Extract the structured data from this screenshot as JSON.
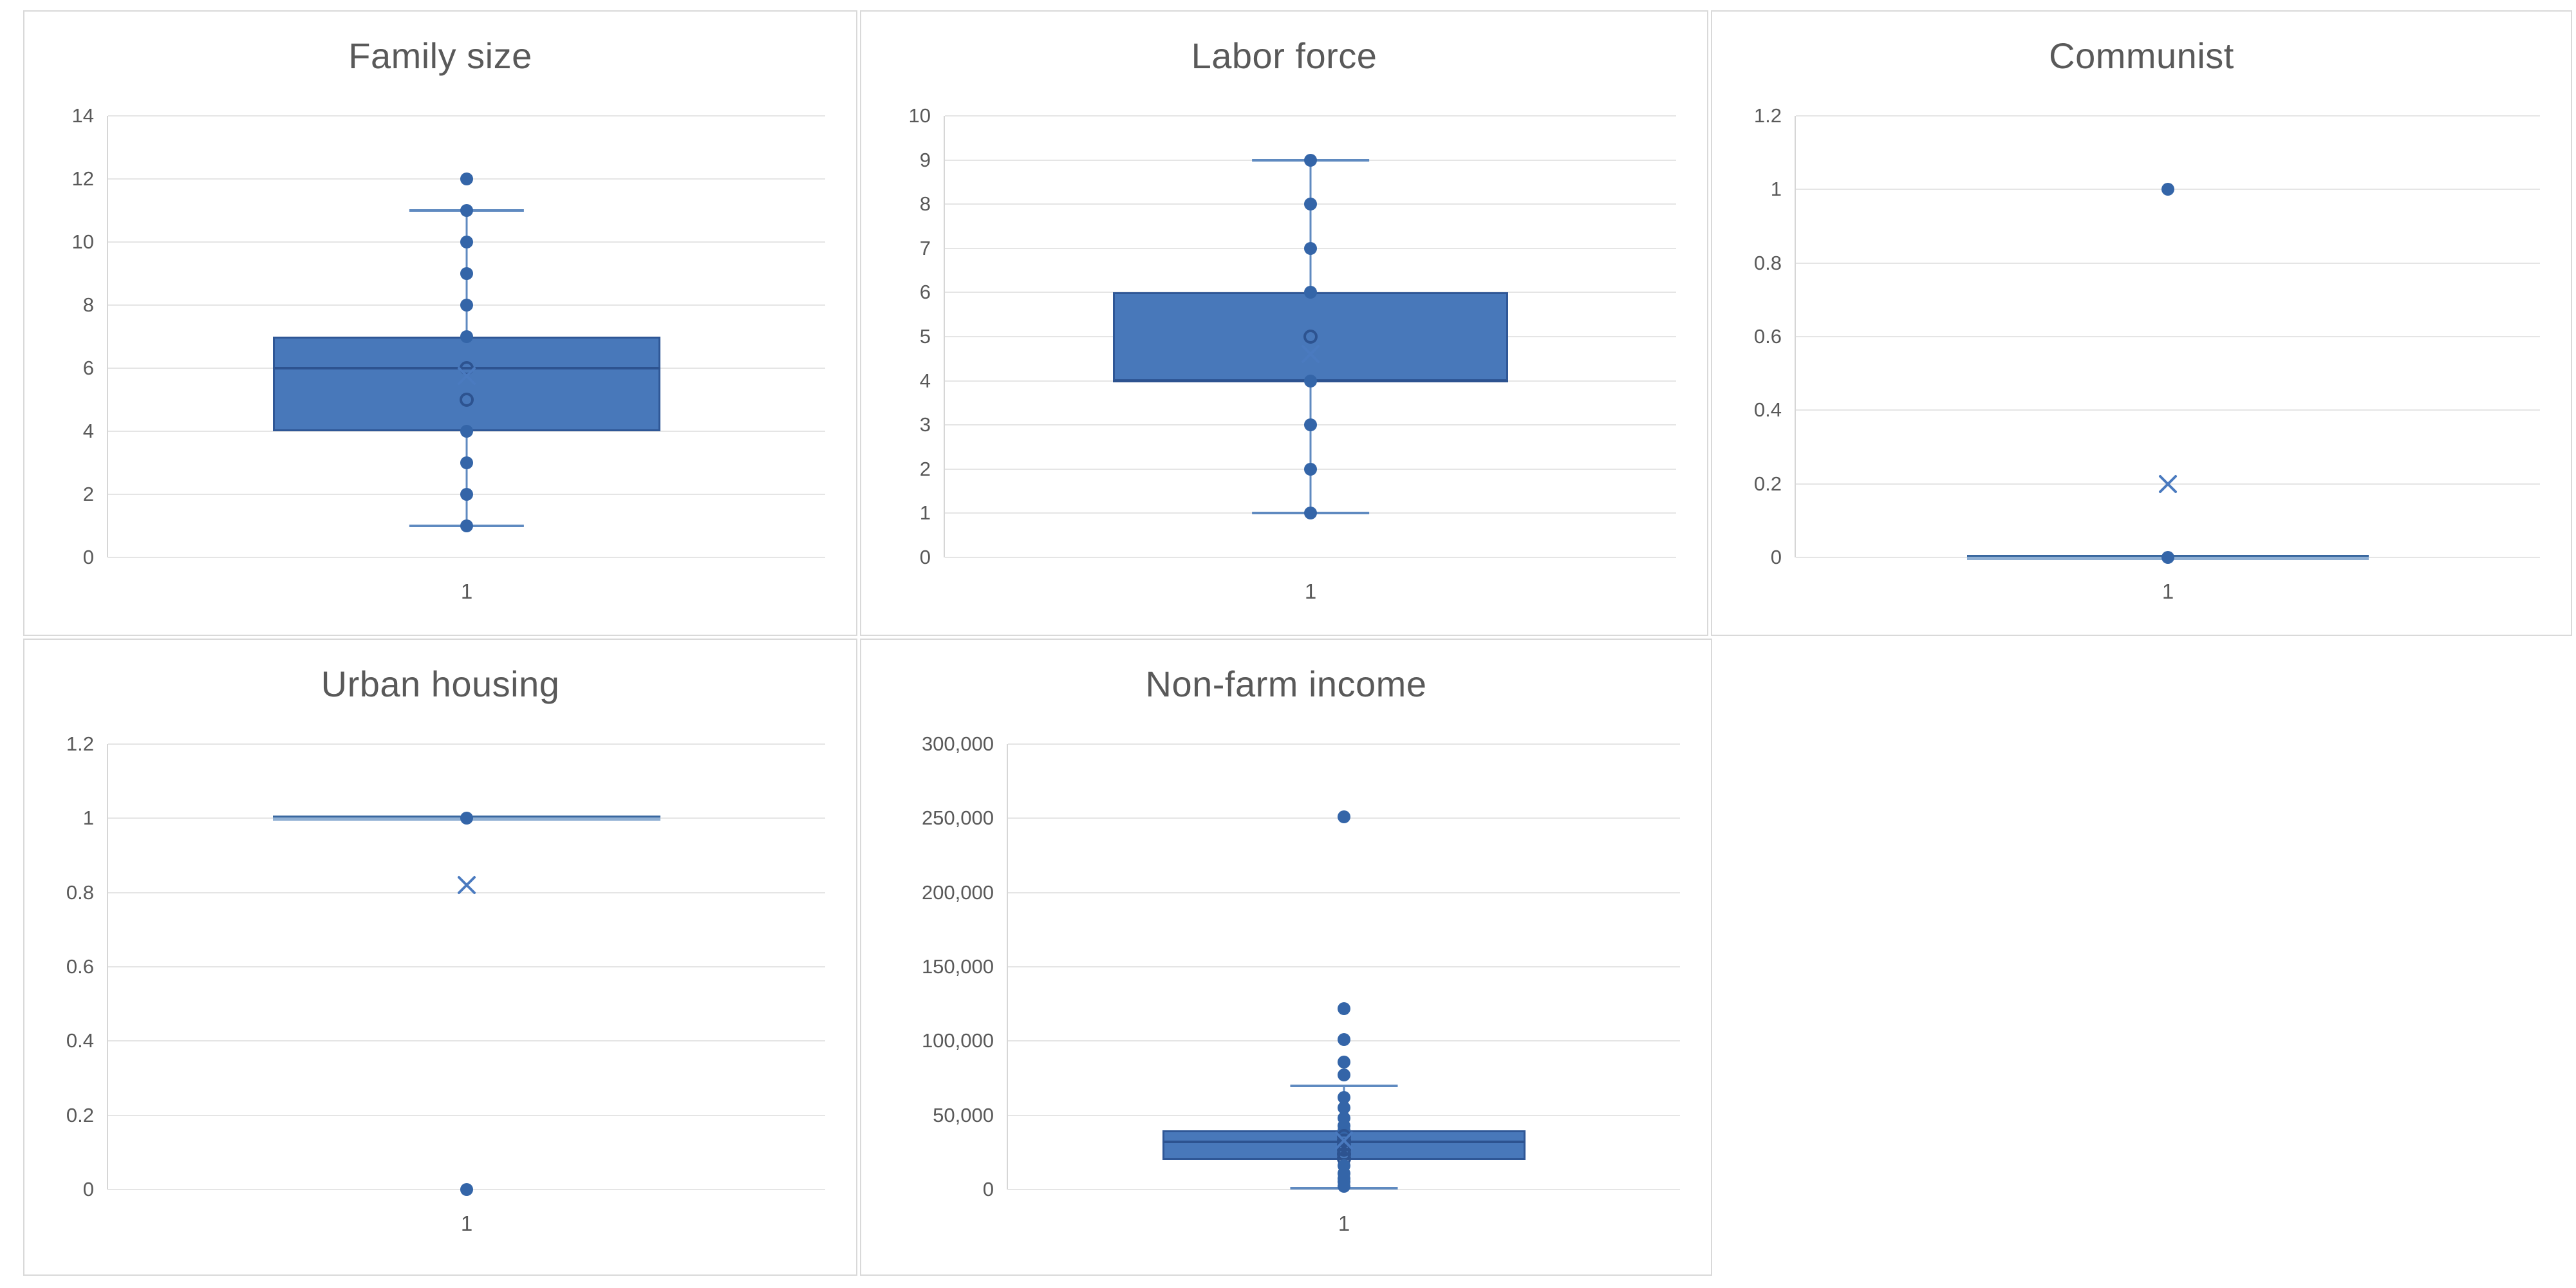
{
  "colors": {
    "panel_border": "#d9d9d9",
    "gridline": "#e5e5e5",
    "axis_line": "#d6d6d6",
    "text": "#595959",
    "box_fill": "#4878ba",
    "box_border": "#2f5796",
    "median": "#2d5390",
    "whisker": "#5f8ac0",
    "point": "#3465a8",
    "mean": "#4a7abf"
  },
  "chart_data": [
    {
      "type": "box",
      "title": "Family size",
      "x_categories": [
        "1"
      ],
      "ylim": [
        0,
        14
      ],
      "grid": true,
      "y_ticks": [
        {
          "v": 0,
          "label": "0"
        },
        {
          "v": 2,
          "label": "2"
        },
        {
          "v": 4,
          "label": "4"
        },
        {
          "v": 6,
          "label": "6"
        },
        {
          "v": 8,
          "label": "8"
        },
        {
          "v": 10,
          "label": "10"
        },
        {
          "v": 12,
          "label": "12"
        },
        {
          "v": 14,
          "label": "14"
        }
      ],
      "box": {
        "q1": 4,
        "median": 6,
        "q3": 7,
        "mean": 5.75,
        "whisker_low": 1,
        "whisker_high": 11
      },
      "points": [
        12,
        11,
        10,
        9,
        8,
        7,
        6,
        5,
        4,
        3,
        2,
        1
      ],
      "outliers": [
        12
      ]
    },
    {
      "type": "box",
      "title": "Labor force",
      "x_categories": [
        "1"
      ],
      "ylim": [
        0,
        10
      ],
      "grid": true,
      "y_ticks": [
        {
          "v": 0,
          "label": "0"
        },
        {
          "v": 1,
          "label": "1"
        },
        {
          "v": 2,
          "label": "2"
        },
        {
          "v": 3,
          "label": "3"
        },
        {
          "v": 4,
          "label": "4"
        },
        {
          "v": 5,
          "label": "5"
        },
        {
          "v": 6,
          "label": "6"
        },
        {
          "v": 7,
          "label": "7"
        },
        {
          "v": 8,
          "label": "8"
        },
        {
          "v": 9,
          "label": "9"
        },
        {
          "v": 10,
          "label": "10"
        }
      ],
      "box": {
        "q1": 4,
        "median": 4,
        "q3": 6,
        "mean": 4.6,
        "whisker_low": 1,
        "whisker_high": 9
      },
      "points": [
        9,
        8,
        7,
        6,
        5,
        4,
        3,
        2,
        1
      ],
      "outliers": []
    },
    {
      "type": "box",
      "title": "Communist",
      "x_categories": [
        "1"
      ],
      "ylim": [
        0,
        1.2
      ],
      "grid": true,
      "y_ticks": [
        {
          "v": 0,
          "label": "0"
        },
        {
          "v": 0.2,
          "label": "0.2"
        },
        {
          "v": 0.4,
          "label": "0.4"
        },
        {
          "v": 0.6,
          "label": "0.6"
        },
        {
          "v": 0.8,
          "label": "0.8"
        },
        {
          "v": 1,
          "label": "1"
        },
        {
          "v": 1.2,
          "label": "1.2"
        }
      ],
      "box": {
        "q1": 0,
        "median": 0,
        "q3": 0,
        "mean": 0.2,
        "whisker_low": 0,
        "whisker_high": 0
      },
      "points": [
        1,
        0
      ],
      "outliers": [
        1
      ]
    },
    {
      "type": "box",
      "title": "Urban housing",
      "x_categories": [
        "1"
      ],
      "ylim": [
        0,
        1.2
      ],
      "grid": true,
      "y_ticks": [
        {
          "v": 0,
          "label": "0"
        },
        {
          "v": 0.2,
          "label": "0.2"
        },
        {
          "v": 0.4,
          "label": "0.4"
        },
        {
          "v": 0.6,
          "label": "0.6"
        },
        {
          "v": 0.8,
          "label": "0.8"
        },
        {
          "v": 1,
          "label": "1"
        },
        {
          "v": 1.2,
          "label": "1.2"
        }
      ],
      "box": {
        "q1": 1,
        "median": 1,
        "q3": 1,
        "mean": 0.82,
        "whisker_low": 1,
        "whisker_high": 1
      },
      "points": [
        1,
        0
      ],
      "outliers": [
        0
      ]
    },
    {
      "type": "box",
      "title": "Non-farm income",
      "x_categories": [
        "1"
      ],
      "ylim": [
        0,
        300000
      ],
      "grid": true,
      "y_ticks": [
        {
          "v": 0,
          "label": "0"
        },
        {
          "v": 50000,
          "label": "50,000"
        },
        {
          "v": 100000,
          "label": "100,000"
        },
        {
          "v": 150000,
          "label": "150,000"
        },
        {
          "v": 200000,
          "label": "200,000"
        },
        {
          "v": 250000,
          "label": "250,000"
        },
        {
          "v": 300000,
          "label": "300,000"
        }
      ],
      "box": {
        "q1": 20000,
        "median": 32000,
        "q3": 40000,
        "mean": 33000,
        "whisker_low": 1000,
        "whisker_high": 70000
      },
      "points": [
        251000,
        122000,
        101000,
        86000,
        77000,
        62000,
        55000,
        48000,
        43000,
        40000,
        36000,
        33000,
        30000,
        27000,
        24000,
        21000,
        16000,
        11000,
        7500,
        5000,
        2000
      ],
      "outliers": [
        251000,
        122000,
        101000,
        86000,
        77000
      ]
    }
  ]
}
